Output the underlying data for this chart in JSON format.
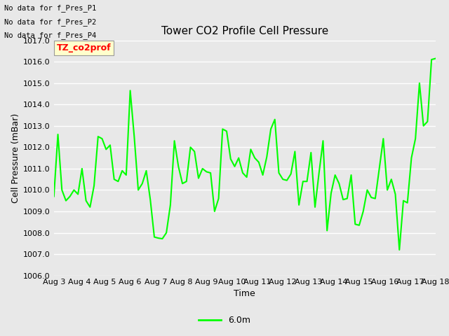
{
  "title": "Tower CO2 Profile Cell Pressure",
  "xlabel": "Time",
  "ylabel": "Cell Pressure (mBar)",
  "ylim": [
    1006.0,
    1017.0
  ],
  "yticks": [
    1006.0,
    1007.0,
    1008.0,
    1009.0,
    1010.0,
    1011.0,
    1012.0,
    1013.0,
    1014.0,
    1015.0,
    1016.0,
    1017.0
  ],
  "line_color": "#00ff00",
  "line_width": 1.5,
  "bg_color": "#e8e8e8",
  "plot_bg_color": "#e8e8e8",
  "annotations": [
    "No data for f_Pres_P1",
    "No data for f_Pres_P2",
    "No data for f_Pres_P4"
  ],
  "legend_label": "6.0m",
  "legend_color": "#00ff00",
  "xtick_labels": [
    "Aug 3",
    "Aug 4",
    "Aug 5",
    "Aug 6",
    "Aug 7",
    "Aug 8",
    "Aug 9",
    "Aug 10",
    "Aug 11",
    "Aug 12",
    "Aug 13",
    "Aug 14",
    "Aug 15",
    "Aug 16",
    "Aug 17",
    "Aug 18"
  ],
  "y_values": [
    1009.7,
    1012.6,
    1010.0,
    1009.5,
    1009.7,
    1010.0,
    1009.8,
    1011.0,
    1009.5,
    1009.2,
    1010.2,
    1012.5,
    1012.4,
    1011.9,
    1012.1,
    1010.5,
    1010.4,
    1010.9,
    1010.7,
    1014.65,
    1012.5,
    1010.0,
    1010.3,
    1010.9,
    1009.55,
    1007.8,
    1007.75,
    1007.72,
    1008.0,
    1009.3,
    1012.3,
    1011.1,
    1010.3,
    1010.4,
    1012.0,
    1011.8,
    1010.55,
    1011.0,
    1010.85,
    1010.8,
    1009.0,
    1009.6,
    1012.85,
    1012.75,
    1011.45,
    1011.1,
    1011.5,
    1010.8,
    1010.6,
    1011.9,
    1011.5,
    1011.3,
    1010.7,
    1011.55,
    1012.85,
    1013.3,
    1010.8,
    1010.5,
    1010.45,
    1010.75,
    1011.8,
    1009.3,
    1010.4,
    1010.4,
    1011.75,
    1009.2,
    1010.8,
    1012.3,
    1008.1,
    1009.85,
    1010.7,
    1010.3,
    1009.55,
    1009.6,
    1010.7,
    1008.4,
    1008.35,
    1009.0,
    1010.0,
    1009.65,
    1009.6,
    1011.0,
    1012.4,
    1010.0,
    1010.5,
    1009.8,
    1007.2,
    1009.5,
    1009.4,
    1011.5,
    1012.4,
    1015.0,
    1013.0,
    1013.2,
    1016.1,
    1016.15
  ]
}
